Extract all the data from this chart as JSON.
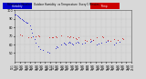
{
  "background_color": "#d8d8d8",
  "plot_bg_color": "#d8d8d8",
  "grid_color": "#aaaaaa",
  "blue_color": "#0000cc",
  "red_color": "#cc0000",
  "legend_blue_color": "#0000cc",
  "legend_red_color": "#cc0000",
  "ylim": [
    40,
    100
  ],
  "xlim": [
    0,
    100
  ],
  "blue_points": [
    [
      0,
      95
    ],
    [
      1,
      95
    ],
    [
      2,
      94
    ],
    [
      3,
      93
    ],
    [
      4,
      92
    ],
    [
      5,
      91
    ],
    [
      6,
      90
    ],
    [
      7,
      89
    ],
    [
      8,
      88
    ],
    [
      9,
      87
    ],
    [
      10,
      86
    ],
    [
      11,
      85
    ],
    [
      13,
      82
    ],
    [
      14,
      78
    ],
    [
      15,
      74
    ],
    [
      16,
      70
    ],
    [
      17,
      66
    ],
    [
      18,
      62
    ],
    [
      20,
      58
    ],
    [
      22,
      55
    ],
    [
      24,
      54
    ],
    [
      28,
      52
    ],
    [
      30,
      50
    ],
    [
      35,
      56
    ],
    [
      36,
      58
    ],
    [
      37,
      57
    ],
    [
      40,
      60
    ],
    [
      42,
      62
    ],
    [
      43,
      61
    ],
    [
      44,
      60
    ],
    [
      46,
      62
    ],
    [
      47,
      63
    ],
    [
      48,
      62
    ],
    [
      49,
      61
    ],
    [
      50,
      60
    ],
    [
      52,
      62
    ],
    [
      54,
      63
    ],
    [
      55,
      62
    ],
    [
      58,
      61
    ],
    [
      60,
      62
    ],
    [
      65,
      63
    ],
    [
      66,
      64
    ],
    [
      67,
      65
    ],
    [
      70,
      60
    ],
    [
      72,
      61
    ],
    [
      74,
      62
    ],
    [
      78,
      63
    ],
    [
      80,
      64
    ],
    [
      85,
      60
    ],
    [
      87,
      62
    ],
    [
      90,
      63
    ]
  ],
  "red_points": [
    [
      5,
      72
    ],
    [
      6,
      71
    ],
    [
      12,
      68
    ],
    [
      14,
      69
    ],
    [
      18,
      70
    ],
    [
      20,
      71
    ],
    [
      21,
      70
    ],
    [
      30,
      68
    ],
    [
      32,
      69
    ],
    [
      33,
      68
    ],
    [
      35,
      70
    ],
    [
      36,
      69
    ],
    [
      40,
      71
    ],
    [
      45,
      70
    ],
    [
      47,
      69
    ],
    [
      48,
      70
    ],
    [
      50,
      68
    ],
    [
      52,
      67
    ],
    [
      53,
      66
    ],
    [
      55,
      68
    ],
    [
      60,
      65
    ],
    [
      62,
      64
    ],
    [
      65,
      66
    ],
    [
      67,
      65
    ],
    [
      70,
      68
    ],
    [
      75,
      70
    ],
    [
      76,
      69
    ],
    [
      80,
      65
    ],
    [
      82,
      64
    ],
    [
      85,
      66
    ],
    [
      88,
      65
    ],
    [
      92,
      67
    ],
    [
      93,
      66
    ]
  ],
  "xtick_labels": [
    "12/1\n00:00",
    "12/1\n01:00",
    "12/1\n02:00",
    "12/1\n03:00",
    "12/1\n04:00",
    "12/1\n05:00",
    "12/1\n06:00",
    "12/1\n07:00",
    "12/1\n08:00",
    "12/1\n09:00",
    "12/1\n10:00",
    "12/1\n11:00",
    "12/1\n12:00",
    "12/1\n13:00",
    "12/1\n14:00",
    "12/1\n15:00",
    "12/1\n16:00",
    "12/1\n17:00",
    "12/1\n18:00",
    "12/1\n19:00",
    "12/1\n20:00",
    "12/1\n21:00",
    "12/1\n22:00",
    "12/1\n23:00"
  ],
  "ytick_labels_left": [
    "50",
    "60",
    "70",
    "80",
    "90",
    "100"
  ],
  "ytick_values_left": [
    50,
    60,
    70,
    80,
    90,
    100
  ]
}
